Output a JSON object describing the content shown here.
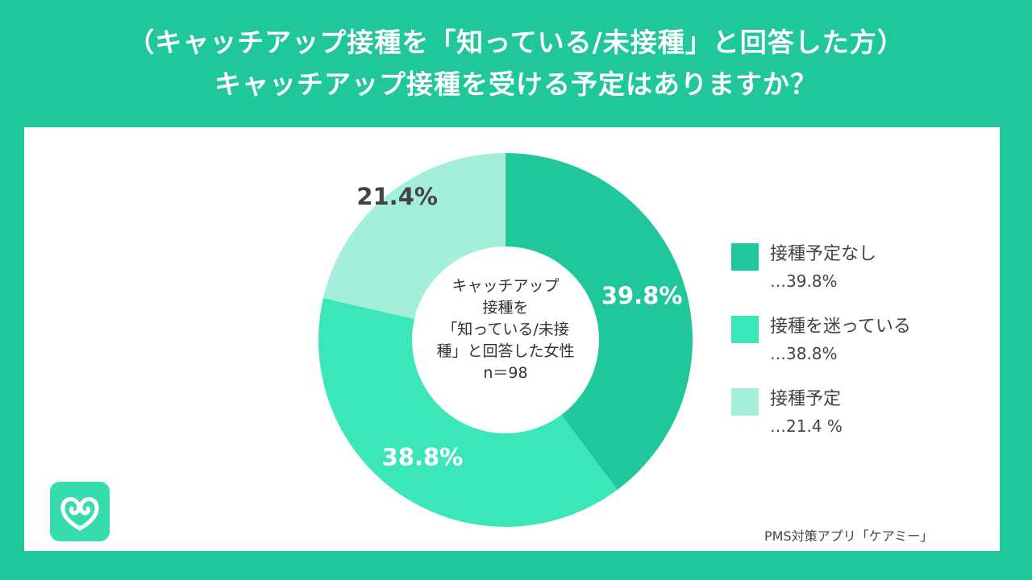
{
  "header": {
    "line1": "（キャッチアップ接種を「知っている/未接種」と回答した方）",
    "line2": "キャッチアップ接種を受ける予定はありますか？"
  },
  "center_label": {
    "lines": [
      "キャッチアップ",
      "接種を",
      "「知っている/未接",
      "種」と回答した女性",
      "n＝98"
    ]
  },
  "legend": {
    "items": [
      {
        "label": "接種予定なし",
        "value": "…39.8%",
        "color": "#1fc79b"
      },
      {
        "label": "接種を迷っている",
        "value": "…38.8%",
        "color": "#3be6b8"
      },
      {
        "label": "接種予定",
        "value": "…21.4 %",
        "color": "#a4efdc"
      }
    ]
  },
  "credit": "PMS対策アプリ「ケアミー」",
  "logo": {
    "icon": "heart-loop-icon"
  },
  "chart_data": {
    "type": "pie",
    "donut": true,
    "title": "キャッチアップ接種を受ける予定はありますか？",
    "sample_size": "n＝98",
    "categories": [
      "接種予定なし",
      "接種を迷っている",
      "接種予定"
    ],
    "values": [
      39.8,
      38.8,
      21.4
    ],
    "data_labels": [
      "39.8%",
      "38.8%",
      "21.4%"
    ],
    "colors": [
      "#1fc79b",
      "#3be6b8",
      "#a4efdc"
    ],
    "label_colors": [
      "#ffffff",
      "#ffffff",
      "#444444"
    ],
    "start_angle_deg": 0,
    "direction": "clockwise",
    "legend_position": "right"
  }
}
